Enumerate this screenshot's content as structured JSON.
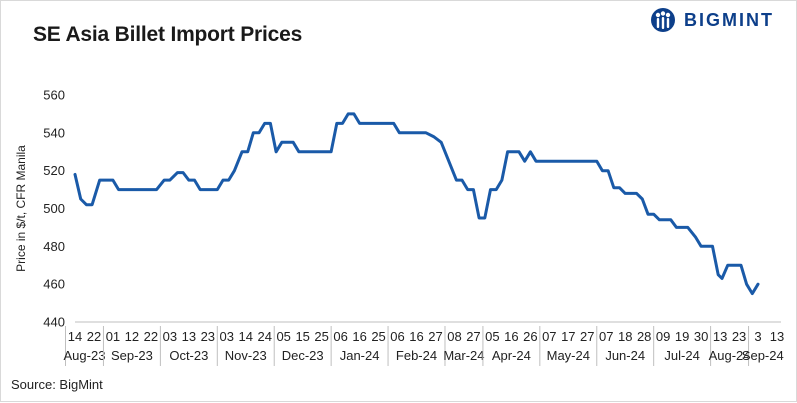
{
  "title": "SE Asia Billet Import Prices",
  "brand": {
    "name": "BIGMINT",
    "color": "#0d3f8a"
  },
  "source": "Source: BigMint",
  "chart_data": {
    "type": "line",
    "title": "SE Asia Billet Import Prices",
    "ylabel": "Price in $/t, CFR Manila",
    "xlabel": "",
    "ylim": [
      440,
      560
    ],
    "yticks": [
      440,
      460,
      480,
      500,
      520,
      540,
      560
    ],
    "grid": false,
    "line_color": "#1a5aa8",
    "day_ticks": [
      "14",
      "22",
      "01",
      "12",
      "22",
      "03",
      "13",
      "23",
      "03",
      "14",
      "24",
      "05",
      "15",
      "25",
      "06",
      "16",
      "25",
      "06",
      "16",
      "27",
      "08",
      "27",
      "05",
      "16",
      "26",
      "07",
      "17",
      "27",
      "07",
      "18",
      "28",
      "09",
      "19",
      "30",
      "13",
      "23",
      "3",
      "13"
    ],
    "month_labels": [
      {
        "label": "Aug-23",
        "start": 0,
        "end": 2
      },
      {
        "label": "Sep-23",
        "start": 2,
        "end": 5
      },
      {
        "label": "Oct-23",
        "start": 5,
        "end": 8
      },
      {
        "label": "Nov-23",
        "start": 8,
        "end": 11
      },
      {
        "label": "Dec-23",
        "start": 11,
        "end": 14
      },
      {
        "label": "Jan-24",
        "start": 14,
        "end": 17
      },
      {
        "label": "Feb-24",
        "start": 17,
        "end": 20
      },
      {
        "label": "Mar-24",
        "start": 20,
        "end": 22
      },
      {
        "label": "Apr-24",
        "start": 22,
        "end": 25
      },
      {
        "label": "May-24",
        "start": 25,
        "end": 28
      },
      {
        "label": "Jun-24",
        "start": 28,
        "end": 31
      },
      {
        "label": "Jul-24",
        "start": 31,
        "end": 34
      },
      {
        "label": "Aug-24",
        "start": 34,
        "end": 36
      },
      {
        "label": "Sep-24",
        "start": 36,
        "end": 37.5
      }
    ],
    "series": [
      {
        "values": [
          {
            "x": 0,
            "y": 518
          },
          {
            "x": 0.3,
            "y": 505
          },
          {
            "x": 0.6,
            "y": 502
          },
          {
            "x": 0.9,
            "y": 502
          },
          {
            "x": 1.3,
            "y": 515
          },
          {
            "x": 2.0,
            "y": 515
          },
          {
            "x": 2.3,
            "y": 510
          },
          {
            "x": 3.0,
            "y": 510
          },
          {
            "x": 4.0,
            "y": 510
          },
          {
            "x": 4.3,
            "y": 510
          },
          {
            "x": 4.7,
            "y": 515
          },
          {
            "x": 5.0,
            "y": 515
          },
          {
            "x": 5.4,
            "y": 519
          },
          {
            "x": 5.7,
            "y": 519
          },
          {
            "x": 6.0,
            "y": 515
          },
          {
            "x": 6.3,
            "y": 515
          },
          {
            "x": 6.6,
            "y": 510
          },
          {
            "x": 7.0,
            "y": 510
          },
          {
            "x": 7.5,
            "y": 510
          },
          {
            "x": 7.8,
            "y": 515
          },
          {
            "x": 8.1,
            "y": 515
          },
          {
            "x": 8.4,
            "y": 520
          },
          {
            "x": 8.8,
            "y": 530
          },
          {
            "x": 9.1,
            "y": 530
          },
          {
            "x": 9.4,
            "y": 540
          },
          {
            "x": 9.7,
            "y": 540
          },
          {
            "x": 10.0,
            "y": 545
          },
          {
            "x": 10.3,
            "y": 545
          },
          {
            "x": 10.6,
            "y": 530
          },
          {
            "x": 10.9,
            "y": 535
          },
          {
            "x": 11.5,
            "y": 535
          },
          {
            "x": 11.8,
            "y": 530
          },
          {
            "x": 12.5,
            "y": 530
          },
          {
            "x": 13.5,
            "y": 530
          },
          {
            "x": 13.8,
            "y": 545
          },
          {
            "x": 14.1,
            "y": 545
          },
          {
            "x": 14.4,
            "y": 550
          },
          {
            "x": 14.7,
            "y": 550
          },
          {
            "x": 15.0,
            "y": 545
          },
          {
            "x": 16.0,
            "y": 545
          },
          {
            "x": 16.8,
            "y": 545
          },
          {
            "x": 17.1,
            "y": 540
          },
          {
            "x": 18.0,
            "y": 540
          },
          {
            "x": 18.5,
            "y": 540
          },
          {
            "x": 18.9,
            "y": 538
          },
          {
            "x": 19.3,
            "y": 535
          },
          {
            "x": 19.7,
            "y": 525
          },
          {
            "x": 20.1,
            "y": 515
          },
          {
            "x": 20.4,
            "y": 515
          },
          {
            "x": 20.7,
            "y": 510
          },
          {
            "x": 21.0,
            "y": 510
          },
          {
            "x": 21.3,
            "y": 495
          },
          {
            "x": 21.6,
            "y": 495
          },
          {
            "x": 21.9,
            "y": 510
          },
          {
            "x": 22.2,
            "y": 510
          },
          {
            "x": 22.5,
            "y": 515
          },
          {
            "x": 22.8,
            "y": 530
          },
          {
            "x": 23.4,
            "y": 530
          },
          {
            "x": 23.7,
            "y": 525
          },
          {
            "x": 24.0,
            "y": 530
          },
          {
            "x": 24.3,
            "y": 525
          },
          {
            "x": 25.0,
            "y": 525
          },
          {
            "x": 26.0,
            "y": 525
          },
          {
            "x": 27.0,
            "y": 525
          },
          {
            "x": 27.5,
            "y": 525
          },
          {
            "x": 27.8,
            "y": 520
          },
          {
            "x": 28.1,
            "y": 520
          },
          {
            "x": 28.4,
            "y": 511
          },
          {
            "x": 28.7,
            "y": 511
          },
          {
            "x": 29.0,
            "y": 508
          },
          {
            "x": 29.6,
            "y": 508
          },
          {
            "x": 29.9,
            "y": 505
          },
          {
            "x": 30.2,
            "y": 497
          },
          {
            "x": 30.5,
            "y": 497
          },
          {
            "x": 30.8,
            "y": 494
          },
          {
            "x": 31.4,
            "y": 494
          },
          {
            "x": 31.7,
            "y": 490
          },
          {
            "x": 32.3,
            "y": 490
          },
          {
            "x": 32.7,
            "y": 485
          },
          {
            "x": 33.0,
            "y": 480
          },
          {
            "x": 33.6,
            "y": 480
          },
          {
            "x": 33.9,
            "y": 465
          },
          {
            "x": 34.1,
            "y": 463
          },
          {
            "x": 34.4,
            "y": 470
          },
          {
            "x": 35.1,
            "y": 470
          },
          {
            "x": 35.4,
            "y": 460
          },
          {
            "x": 35.7,
            "y": 455
          },
          {
            "x": 36.0,
            "y": 460
          }
        ]
      }
    ]
  }
}
